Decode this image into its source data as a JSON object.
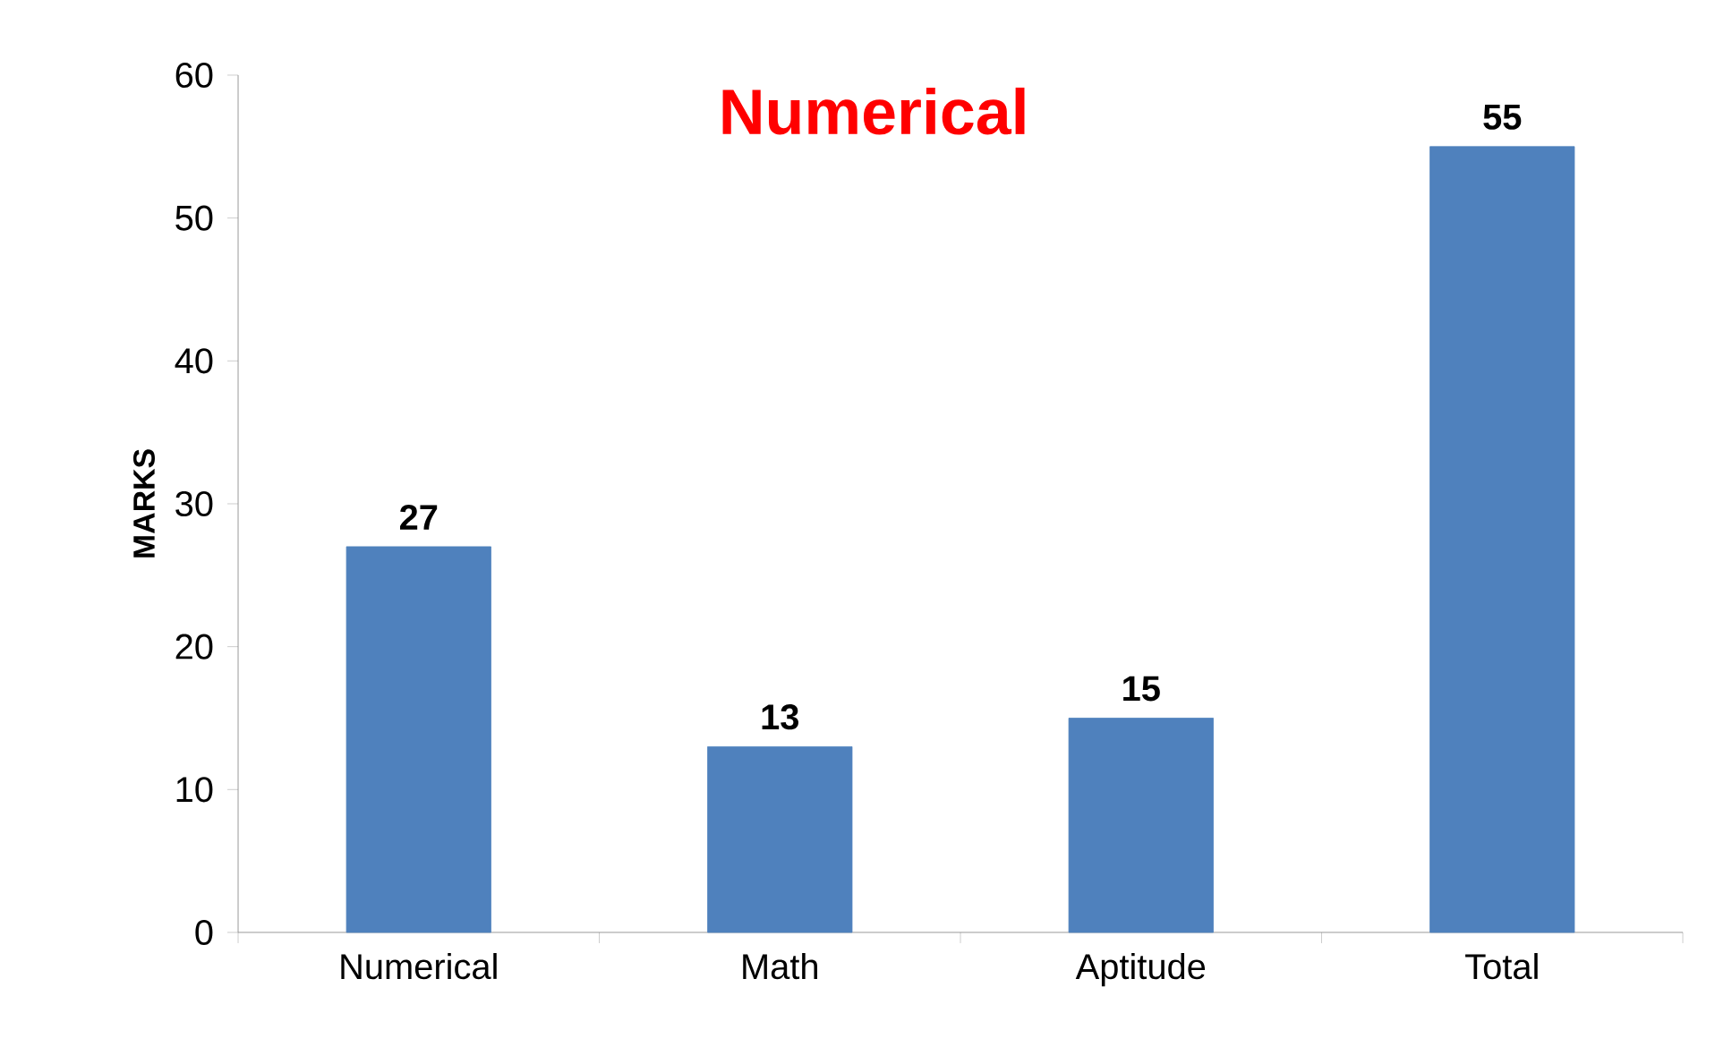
{
  "chart_data": {
    "type": "bar",
    "title": "Numerical",
    "ylabel": "MARKS",
    "categories": [
      "Numerical",
      "Math",
      "Aptitude",
      "Total"
    ],
    "values": [
      27,
      13,
      15,
      55
    ],
    "color": "#4f81bd",
    "ylim": [
      0,
      60
    ],
    "yticks": [
      0,
      10,
      20,
      30,
      40,
      50,
      60
    ],
    "data_labels": true,
    "grid": false
  }
}
